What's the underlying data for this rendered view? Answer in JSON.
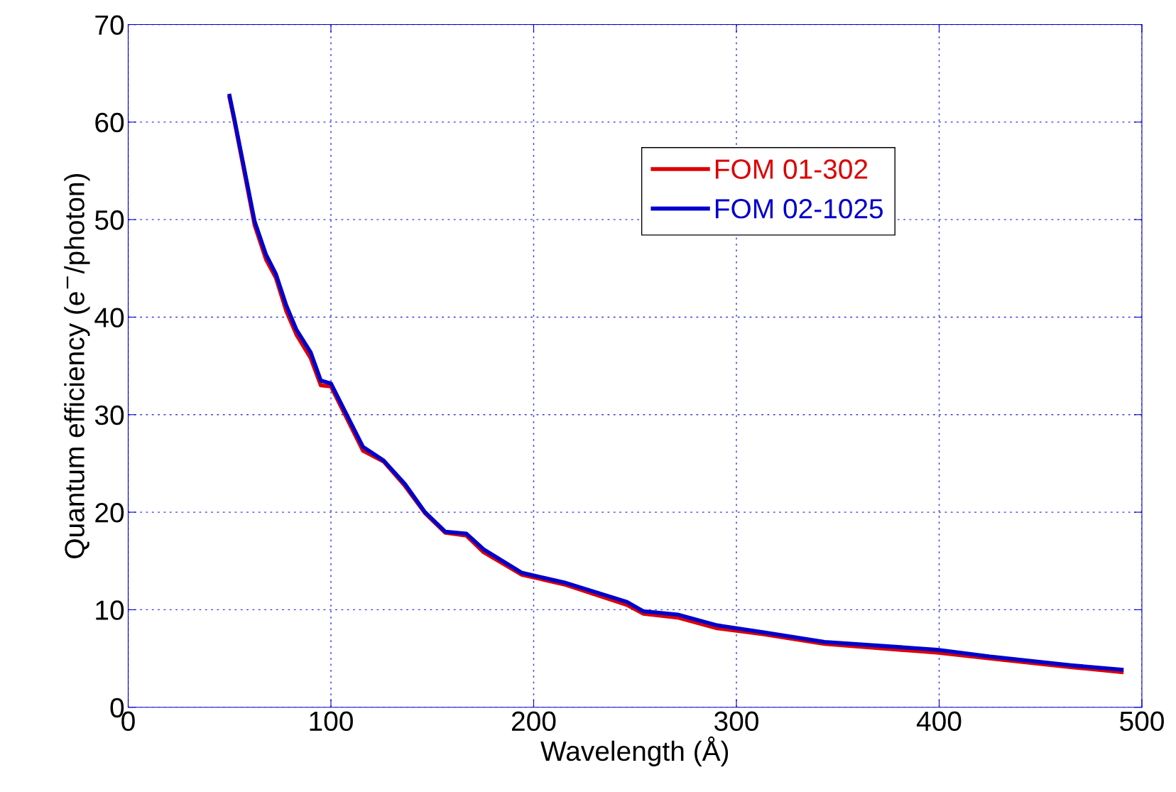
{
  "chart_data": {
    "type": "line",
    "xlabel": "Wavelength (Å)",
    "ylabel": "Quantum efficiency (e$^{−}$/photon)",
    "xlim": [
      0,
      500
    ],
    "xticks": [
      0,
      100,
      200,
      300,
      400,
      500
    ],
    "ylim": [
      0,
      70
    ],
    "yticks": [
      0,
      10,
      20,
      30,
      40,
      50,
      60,
      70
    ],
    "grid": true,
    "legend": "top right",
    "line_style": "solid",
    "marker": "none",
    "series": [
      {
        "name": "FOM 01-302",
        "color": "#dd0000",
        "x": [
          50,
          52.5,
          62.4,
          68,
          72.9,
          78,
          83,
          90,
          95,
          100,
          115.8,
          126,
          136.5,
          146.4,
          156.4,
          166.8,
          175.3,
          194,
          215,
          246,
          254,
          271,
          290.5,
          313,
          343.5,
          399,
          425,
          465.6,
          490
        ],
        "values": [
          62.5,
          60,
          49.4,
          45.9,
          44,
          40.6,
          38.2,
          35.8,
          33.0,
          32.9,
          26.3,
          25.2,
          22.7,
          19.9,
          17.9,
          17.6,
          15.9,
          13.6,
          12.6,
          10.5,
          9.6,
          9.2,
          8.1,
          7.5,
          6.5,
          5.6,
          5.0,
          4.1,
          3.6
        ]
      },
      {
        "name": "FOM 02-1025",
        "color": "#0000cc",
        "x": [
          50,
          52.5,
          62.4,
          68,
          72.9,
          78,
          83,
          90,
          95,
          100,
          115.8,
          126,
          136.5,
          146.4,
          156.4,
          166.8,
          175.3,
          194,
          215,
          246,
          254,
          271,
          290.5,
          313,
          343.5,
          399,
          425,
          465.6,
          490
        ],
        "values": [
          62.7,
          60.2,
          49.8,
          46.4,
          44.4,
          41.2,
          38.7,
          36.4,
          33.5,
          33.2,
          26.7,
          25.3,
          22.9,
          20.0,
          18.0,
          17.8,
          16.2,
          13.8,
          12.8,
          10.8,
          9.85,
          9.5,
          8.4,
          7.7,
          6.7,
          5.9,
          5.2,
          4.3,
          3.85
        ]
      }
    ]
  }
}
